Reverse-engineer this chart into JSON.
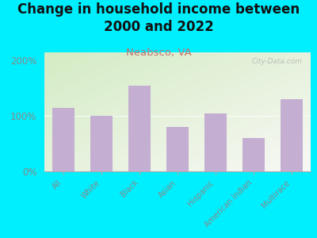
{
  "title": "Change in household income between\n2000 and 2022",
  "subtitle": "Neabsco, VA",
  "categories": [
    "All",
    "White",
    "Black",
    "Asian",
    "Hispanic",
    "American Indian",
    "Multirace"
  ],
  "values": [
    115,
    100,
    155,
    80,
    105,
    60,
    130
  ],
  "bar_color": "#c4aed2",
  "background_outer": "#00efff",
  "yticks": [
    0,
    100,
    200
  ],
  "ylim": [
    0,
    215
  ],
  "watermark": "City-Data.com",
  "title_fontsize": 12,
  "title_color": "#111111",
  "subtitle_fontsize": 9.5,
  "subtitle_color": "#c47070",
  "tick_color": "#888888",
  "xlabel_color": "#888888",
  "grad_top_left": "#cce8c0",
  "grad_bottom_right": "#f8f8f5"
}
